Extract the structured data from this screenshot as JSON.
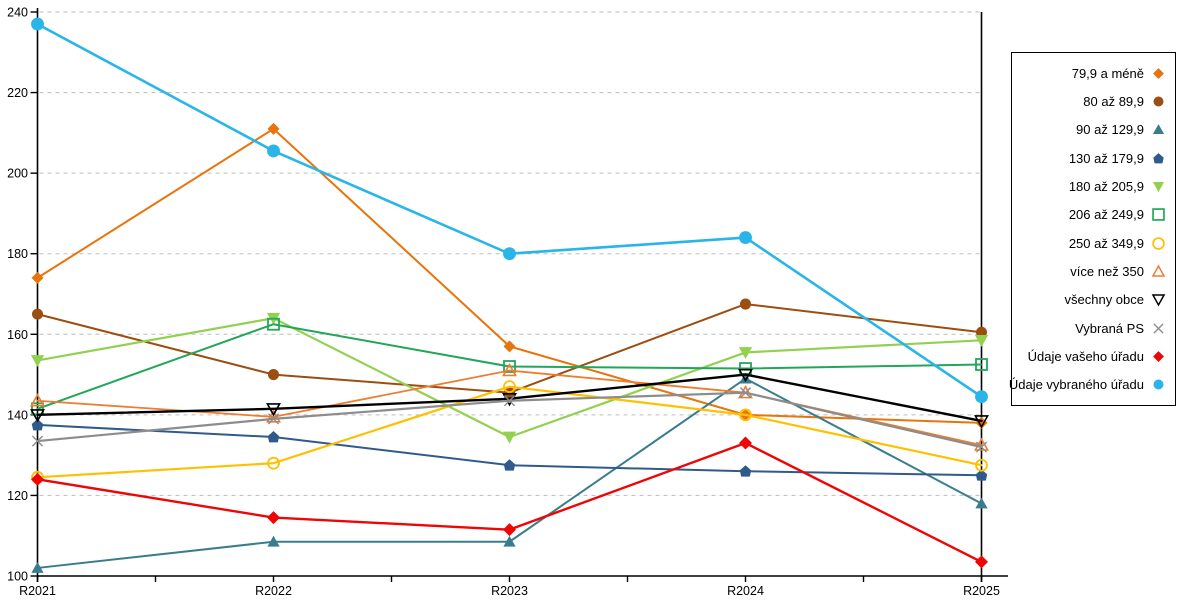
{
  "chart_data": {
    "type": "line",
    "title": "",
    "xlabel": "",
    "ylabel": "",
    "grid": "horizontal-dashed",
    "grid_color": "#bdbdbd",
    "axis_color": "#000000",
    "background": "#ffffff",
    "legend_position": "right-box",
    "x_categories": [
      "R2021",
      "R2022",
      "R2023",
      "R2024",
      "R2025"
    ],
    "y_axis": {
      "min": 100,
      "max": 240,
      "step": 20,
      "tick_labels": [
        "100",
        "120",
        "140",
        "160",
        "180",
        "200",
        "220",
        "240"
      ]
    },
    "series": [
      {
        "name": "79,9 a méně",
        "color": "#E8740C",
        "marker": "diamond",
        "filled": true,
        "line_width": 2,
        "marker_size": 6,
        "values": [
          174,
          211,
          157,
          140,
          138
        ]
      },
      {
        "name": "80 až 89,9",
        "color": "#9C4E10",
        "marker": "circle",
        "filled": true,
        "line_width": 2,
        "marker_size": 6,
        "values": [
          165,
          150,
          145.5,
          167.5,
          160.5
        ]
      },
      {
        "name": "90 až 129,9",
        "color": "#397D8D",
        "marker": "triangle-up",
        "filled": true,
        "line_width": 2,
        "marker_size": 6,
        "values": [
          102,
          108.5,
          108.5,
          149,
          118
        ]
      },
      {
        "name": "130 až 179,9",
        "color": "#315A8C",
        "marker": "pentagon",
        "filled": true,
        "line_width": 2,
        "marker_size": 6,
        "values": [
          137.5,
          134.5,
          127.5,
          126,
          125
        ]
      },
      {
        "name": "180 až 205,9",
        "color": "#92D050",
        "marker": "triangle-down",
        "filled": true,
        "line_width": 2.2,
        "marker_size": 6.5,
        "values": [
          153.5,
          164,
          134.5,
          155.5,
          158.5
        ]
      },
      {
        "name": "206 až 249,9",
        "color": "#22A659",
        "marker": "square-open",
        "filled": false,
        "line_width": 2,
        "marker_size": 5.5,
        "values": [
          141.5,
          162.5,
          152,
          151.5,
          152.5
        ]
      },
      {
        "name": "250 až 349,9",
        "color": "#FFC000",
        "marker": "circle-open",
        "filled": false,
        "line_width": 2.2,
        "marker_size": 5.5,
        "values": [
          124.5,
          128,
          147,
          140,
          127.5
        ]
      },
      {
        "name": "více než 350",
        "color": "#ED7D31",
        "marker": "triangle-up-open",
        "filled": false,
        "line_width": 1.8,
        "marker_size": 6,
        "values": [
          143.5,
          139.5,
          151,
          145.5,
          132.5
        ]
      },
      {
        "name": "všechny obce",
        "color": "#000000",
        "marker": "triangle-down-open",
        "filled": false,
        "line_width": 2.4,
        "marker_size": 6,
        "values": [
          140,
          141.5,
          144,
          150,
          138.5
        ]
      },
      {
        "name": "Vybraná PS",
        "color": "#8C8C8C",
        "marker": "x",
        "filled": false,
        "line_width": 2.2,
        "marker_size": 6,
        "values": [
          133.5,
          139,
          143.5,
          145.5,
          132
        ]
      },
      {
        "name": "Údaje vašeho úřadu",
        "color": "#EE0505",
        "marker": "diamond",
        "filled": true,
        "line_width": 2.4,
        "marker_size": 6.5,
        "values": [
          124,
          114.5,
          111.5,
          133,
          103.5
        ]
      },
      {
        "name": "Údaje vybraného úřadu",
        "color": "#29B5E8",
        "marker": "circle",
        "filled": true,
        "line_width": 2.6,
        "marker_size": 7,
        "values": [
          237,
          205.5,
          180,
          184,
          144.5
        ]
      }
    ]
  }
}
